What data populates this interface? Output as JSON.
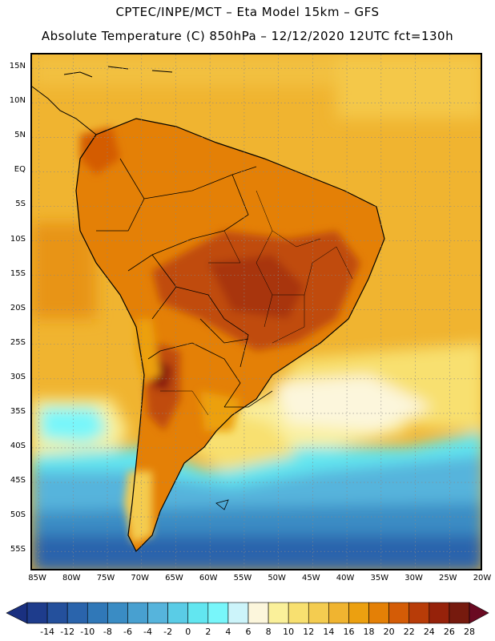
{
  "header": {
    "line1": "CPTEC/INPE/MCT –  Eta Model 15km – GFS",
    "line2": "Absolute Temperature (C) 850hPa – 12/12/2020 12UTC fct=130h"
  },
  "map": {
    "region": "South America",
    "lat_range": [
      -58,
      17
    ],
    "lon_range": [
      -86,
      -20
    ],
    "lat_labels": [
      "15N",
      "10N",
      "5N",
      "EQ",
      "5S",
      "10S",
      "15S",
      "20S",
      "25S",
      "30S",
      "35S",
      "40S",
      "45S",
      "50S",
      "55S"
    ],
    "lon_labels": [
      "85W",
      "80W",
      "75W",
      "70W",
      "65W",
      "60W",
      "55W",
      "50W",
      "45W",
      "40W",
      "35W",
      "30W",
      "25W",
      "20W"
    ]
  },
  "colorbar": {
    "labels": [
      "-14",
      "-12",
      "-10",
      "-8",
      "-6",
      "-4",
      "-2",
      "0",
      "2",
      "4",
      "6",
      "8",
      "10",
      "12",
      "14",
      "16",
      "18",
      "20",
      "22",
      "24",
      "26",
      "28"
    ],
    "colors": [
      "#1e3c8c",
      "#24509c",
      "#2a64ac",
      "#3078b8",
      "#3a8cc4",
      "#48a0d0",
      "#56b4dc",
      "#5acce6",
      "#62e6f0",
      "#78f6fa",
      "#ccf4fa",
      "#fcf6dc",
      "#faf09a",
      "#f8e070",
      "#f4cc50",
      "#f0b430",
      "#eca010",
      "#e48006",
      "#d45c06",
      "#b83c08",
      "#96220a",
      "#761a0e"
    ],
    "under_color": "#1a3080",
    "over_color": "#6a0a22"
  }
}
